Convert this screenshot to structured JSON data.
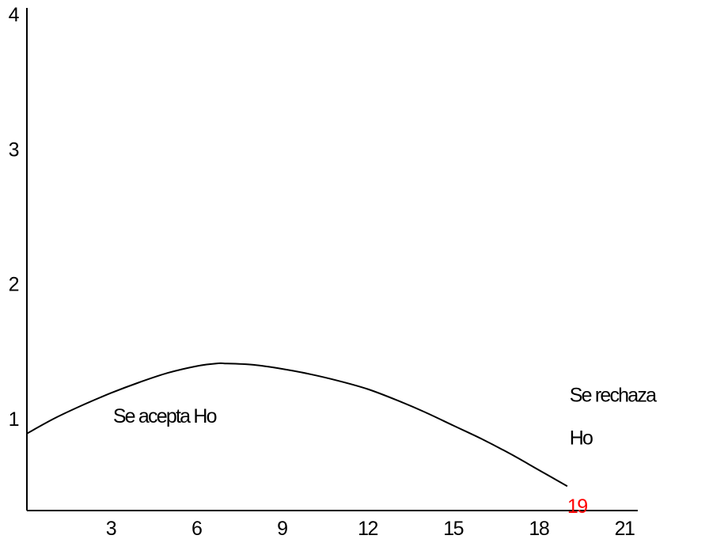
{
  "chart_data": {
    "type": "line",
    "title": "",
    "xlabel": "",
    "ylabel": "",
    "x_ticks": [
      3,
      6,
      9,
      12,
      15,
      18,
      21
    ],
    "y_ticks": [
      1,
      2,
      3,
      4
    ],
    "xlim": [
      0,
      21
    ],
    "ylim": [
      0.3,
      4
    ],
    "grid": false,
    "series": [
      {
        "x": [
          0,
          1,
          2,
          3,
          4,
          5,
          6,
          6.7,
          7,
          8,
          9,
          10,
          11,
          12,
          13,
          14,
          15,
          16,
          17,
          18,
          19
        ],
        "y": [
          0.89,
          1.0,
          1.1,
          1.19,
          1.27,
          1.34,
          1.39,
          1.41,
          1.41,
          1.4,
          1.37,
          1.33,
          1.28,
          1.22,
          1.14,
          1.05,
          0.95,
          0.85,
          0.74,
          0.62,
          0.5
        ]
      }
    ],
    "critical_value": {
      "x": 19,
      "label": "19",
      "color": "#ff0000"
    },
    "annotations": {
      "accept": {
        "text": "Se acepta Ho",
        "x": 3.3,
        "y": 0.97
      },
      "reject": {
        "lines": [
          "Se rechaza",
          "Ho"
        ],
        "x": 19.3,
        "y": 1.16
      }
    }
  }
}
